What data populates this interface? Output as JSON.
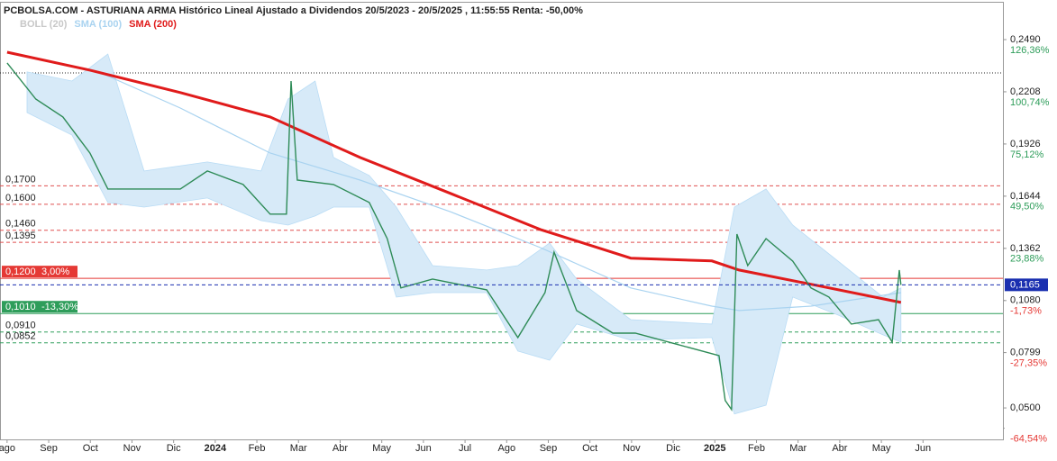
{
  "chart_data": {
    "type": "line",
    "title": "PCBOLSA.COM - ASTURIANA ARMA Histórico Lineal Ajustado a Dividendos 20/5/2023 - 20/5/2025 , 11:55:55 Renta: -50,00%",
    "xlim": [
      -0.17,
      23.92
    ],
    "xticks": [
      {
        "value": 0,
        "label": "ago"
      },
      {
        "value": 1,
        "label": "Sep"
      },
      {
        "value": 2,
        "label": "Oct"
      },
      {
        "value": 3,
        "label": "Nov"
      },
      {
        "value": 4,
        "label": "Dic"
      },
      {
        "value": 5,
        "label": "2024"
      },
      {
        "value": 6,
        "label": "Feb"
      },
      {
        "value": 7,
        "label": "Mar"
      },
      {
        "value": 8,
        "label": "Abr"
      },
      {
        "value": 9,
        "label": "May"
      },
      {
        "value": 10,
        "label": "Jun"
      },
      {
        "value": 11,
        "label": "Jul"
      },
      {
        "value": 12,
        "label": "Ago"
      },
      {
        "value": 13,
        "label": "Sep"
      },
      {
        "value": 14,
        "label": "Oct"
      },
      {
        "value": 15,
        "label": "Nov"
      },
      {
        "value": 16,
        "label": "Dic"
      },
      {
        "value": 17,
        "label": "2025"
      },
      {
        "value": 18,
        "label": "Feb"
      },
      {
        "value": 19,
        "label": "Mar"
      },
      {
        "value": 20,
        "label": "Abr"
      },
      {
        "value": 21,
        "label": "May"
      },
      {
        "value": 22,
        "label": "Jun"
      }
    ],
    "ylim": [
      0.033,
      0.2665
    ],
    "yticks": [
      {
        "value": 0.249,
        "label": "0,2490"
      },
      {
        "value": 0.2208,
        "label": "0,2208"
      },
      {
        "value": 0.1926,
        "label": "0,1926"
      },
      {
        "value": 0.1644,
        "label": "0,1644"
      },
      {
        "value": 0.1362,
        "label": "0,1362"
      },
      {
        "value": 0.108,
        "label": "0,1080"
      },
      {
        "value": 0.0799,
        "label": "0,0799"
      },
      {
        "value": 0.05,
        "label": "0,0500"
      }
    ],
    "y2lim": [
      -70,
      142.27
    ],
    "y2ticks": [
      {
        "value": 126.36,
        "label": "126,36%"
      },
      {
        "value": 100.74,
        "label": "100,74%"
      },
      {
        "value": 75.12,
        "label": "75,12%"
      },
      {
        "value": 49.5,
        "label": "49,50%"
      },
      {
        "value": 23.88,
        "label": "23,88%"
      },
      {
        "value": -1.73,
        "label": "-1,73%"
      },
      {
        "value": -27.35,
        "label": "-27,35%"
      },
      {
        "value": -64.54,
        "label": "-64,54%"
      }
    ],
    "levels": [
      {
        "value": 0.17,
        "label": "0,1700",
        "color": "#e05050",
        "style": "dashed"
      },
      {
        "value": 0.16,
        "label": "0,1600",
        "color": "#e05050",
        "style": "dashed"
      },
      {
        "value": 0.146,
        "label": "0,1460",
        "color": "#e05050",
        "style": "dashed"
      },
      {
        "value": 0.1395,
        "label": "0,1395",
        "color": "#e05050",
        "style": "dashed"
      },
      {
        "value": 0.12,
        "label": "0,1200",
        "note": "3,00%",
        "color": "#e53935",
        "style": "solid",
        "boxed": true
      },
      {
        "value": 0.101,
        "label": "0,1010",
        "note": "-13,30%",
        "color": "#2e9d5a",
        "style": "solid",
        "boxed": true
      },
      {
        "value": 0.091,
        "label": "0,0910",
        "color": "#2e9d5a",
        "style": "dashed"
      },
      {
        "value": 0.0852,
        "label": "0,0852",
        "color": "#2e9d5a",
        "style": "dashed"
      }
    ],
    "current": {
      "value": 0.1165,
      "label": "0,1165",
      "color": "#1a2fb0"
    },
    "series": [
      {
        "name": "BOLL (20)",
        "color": "#d7eaf8",
        "legend_color": "#c8c8c8",
        "x": [
          0.48,
          1.56,
          2.42,
          3.29,
          4.81,
          6.1,
          6.75,
          7.4,
          7.84,
          8.7,
          9.35,
          10.22,
          11.52,
          12.27,
          13.03,
          13.68,
          14.98,
          16.93,
          17.47,
          18.23,
          18.87,
          19.96,
          21.04,
          21.47
        ],
        "upper": [
          0.2315,
          0.2266,
          0.2412,
          0.178,
          0.1829,
          0.178,
          0.2169,
          0.2266,
          0.1853,
          0.1756,
          0.1585,
          0.1269,
          0.1245,
          0.1269,
          0.1391,
          0.1196,
          0.0977,
          0.0953,
          0.1585,
          0.1683,
          0.1488,
          0.1293,
          0.1099,
          0.1148
        ],
        "lower": [
          0.2096,
          0.1974,
          0.161,
          0.1585,
          0.1634,
          0.1512,
          0.1488,
          0.1537,
          0.1585,
          0.1585,
          0.1099,
          0.1123,
          0.1123,
          0.0807,
          0.0758,
          0.0953,
          0.0866,
          0.088,
          0.0467,
          0.0515,
          0.1099,
          0.1002,
          0.0895,
          0.0856
        ]
      },
      {
        "name": "SMA (100)",
        "color": "#a9d3f0",
        "x": [
          2.2,
          4.16,
          6.32,
          8.48,
          10.65,
          12.81,
          14.98,
          16.93,
          17.58,
          19.31,
          21.47
        ],
        "values": [
          0.2315,
          0.212,
          0.1877,
          0.1731,
          0.156,
          0.1366,
          0.1148,
          0.105,
          0.1026,
          0.105,
          0.1123
        ]
      },
      {
        "name": "SMA (200)",
        "color": "#e01b1b",
        "x": [
          0,
          1.99,
          4.16,
          6.32,
          8.48,
          10.65,
          12.81,
          14.98,
          16.93,
          17.58,
          19.31,
          21.47
        ],
        "values": [
          0.2422,
          0.2325,
          0.2204,
          0.2072,
          0.1853,
          0.1659,
          0.1464,
          0.1309,
          0.1294,
          0.1245,
          0.1168,
          0.107
        ]
      },
      {
        "color": "#2e8b57",
        "x": [
          0,
          0.69,
          1.34,
          1.99,
          2.42,
          3.29,
          4.16,
          4.81,
          5.67,
          6.32,
          6.71,
          6.82,
          6.97,
          7.84,
          8.7,
          9.13,
          9.46,
          10.22,
          11.52,
          12.27,
          12.92,
          13.14,
          13.68,
          14.55,
          15.09,
          17.1,
          17.25,
          17.4,
          17.53,
          17.79,
          18.23,
          18.87,
          19.31,
          19.74,
          20.28,
          20.93,
          21.26,
          21.43,
          21.47
        ],
        "values": [
          0.2364,
          0.2169,
          0.2072,
          0.1877,
          0.1683,
          0.1683,
          0.1683,
          0.178,
          0.1707,
          0.1547,
          0.1547,
          0.2266,
          0.1731,
          0.1707,
          0.161,
          0.1415,
          0.1148,
          0.1196,
          0.1138,
          0.088,
          0.1123,
          0.1342,
          0.1026,
          0.0904,
          0.0904,
          0.0783,
          0.054,
          0.0491,
          0.1439,
          0.1269,
          0.1415,
          0.1293,
          0.1148,
          0.1099,
          0.0953,
          0.0977,
          0.0856,
          0.1245,
          0.1165
        ]
      }
    ]
  }
}
